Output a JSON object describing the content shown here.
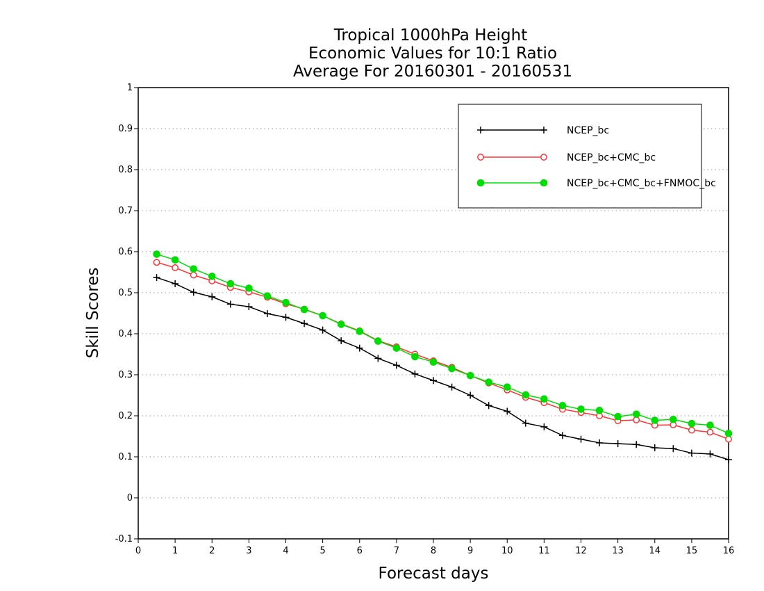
{
  "chart_data": {
    "type": "line",
    "title": [
      "Tropical 1000hPa Height",
      "Economic Values for 10:1 Ratio",
      "Average For 20160301 - 20160531"
    ],
    "xlabel": "Forecast days",
    "ylabel": "Skill Scores",
    "xlim": [
      0,
      16
    ],
    "ylim": [
      -0.1,
      1
    ],
    "xticks": [
      0,
      1,
      2,
      3,
      4,
      5,
      6,
      7,
      8,
      9,
      10,
      11,
      12,
      13,
      14,
      15,
      16
    ],
    "yticks": [
      -0.1,
      0,
      0.1,
      0.2,
      0.3,
      0.4,
      0.5,
      0.6,
      0.7,
      0.8,
      0.9,
      1
    ],
    "ytick_labels": [
      "-0.1",
      "0",
      "0.1",
      "0.2",
      "0.3",
      "0.4",
      "0.5",
      "0.6",
      "0.7",
      "0.8",
      "0.9",
      "1"
    ],
    "grid": "horizontal-dotted",
    "legend_position": "top-right",
    "x": [
      0.5,
      1,
      1.5,
      2,
      2.5,
      3,
      3.5,
      4,
      4.5,
      5,
      5.5,
      6,
      6.5,
      7,
      7.5,
      8,
      8.5,
      9,
      9.5,
      10,
      10.5,
      11,
      11.5,
      12,
      12.5,
      13,
      13.5,
      14,
      14.5,
      15,
      15.5,
      16
    ],
    "series": [
      {
        "name": "NCEP_bc",
        "color": "#000000",
        "marker": "plus",
        "values": [
          0.537,
          0.522,
          0.501,
          0.49,
          0.472,
          0.466,
          0.449,
          0.44,
          0.425,
          0.409,
          0.383,
          0.365,
          0.34,
          0.323,
          0.302,
          0.286,
          0.27,
          0.25,
          0.225,
          0.211,
          0.182,
          0.173,
          0.152,
          0.143,
          0.134,
          0.132,
          0.13,
          0.122,
          0.12,
          0.109,
          0.107,
          0.093
        ]
      },
      {
        "name": "NCEP_bc+CMC_bc",
        "color": "#ff3333",
        "marker": "open-circle",
        "values": [
          0.574,
          0.561,
          0.543,
          0.529,
          0.513,
          0.502,
          0.489,
          0.473,
          0.46,
          0.444,
          0.424,
          0.407,
          0.383,
          0.368,
          0.35,
          0.334,
          0.318,
          0.298,
          0.28,
          0.263,
          0.245,
          0.232,
          0.216,
          0.208,
          0.2,
          0.188,
          0.19,
          0.177,
          0.178,
          0.165,
          0.16,
          0.143
        ]
      },
      {
        "name": "NCEP_bc+CMC_bc+FNMOC_bc",
        "color": "#00dd00",
        "marker": "filled-circle",
        "values": [
          0.594,
          0.58,
          0.558,
          0.54,
          0.522,
          0.511,
          0.492,
          0.476,
          0.459,
          0.444,
          0.423,
          0.406,
          0.382,
          0.365,
          0.344,
          0.331,
          0.315,
          0.298,
          0.282,
          0.27,
          0.251,
          0.241,
          0.225,
          0.216,
          0.213,
          0.198,
          0.204,
          0.189,
          0.191,
          0.181,
          0.177,
          0.157
        ]
      }
    ]
  }
}
